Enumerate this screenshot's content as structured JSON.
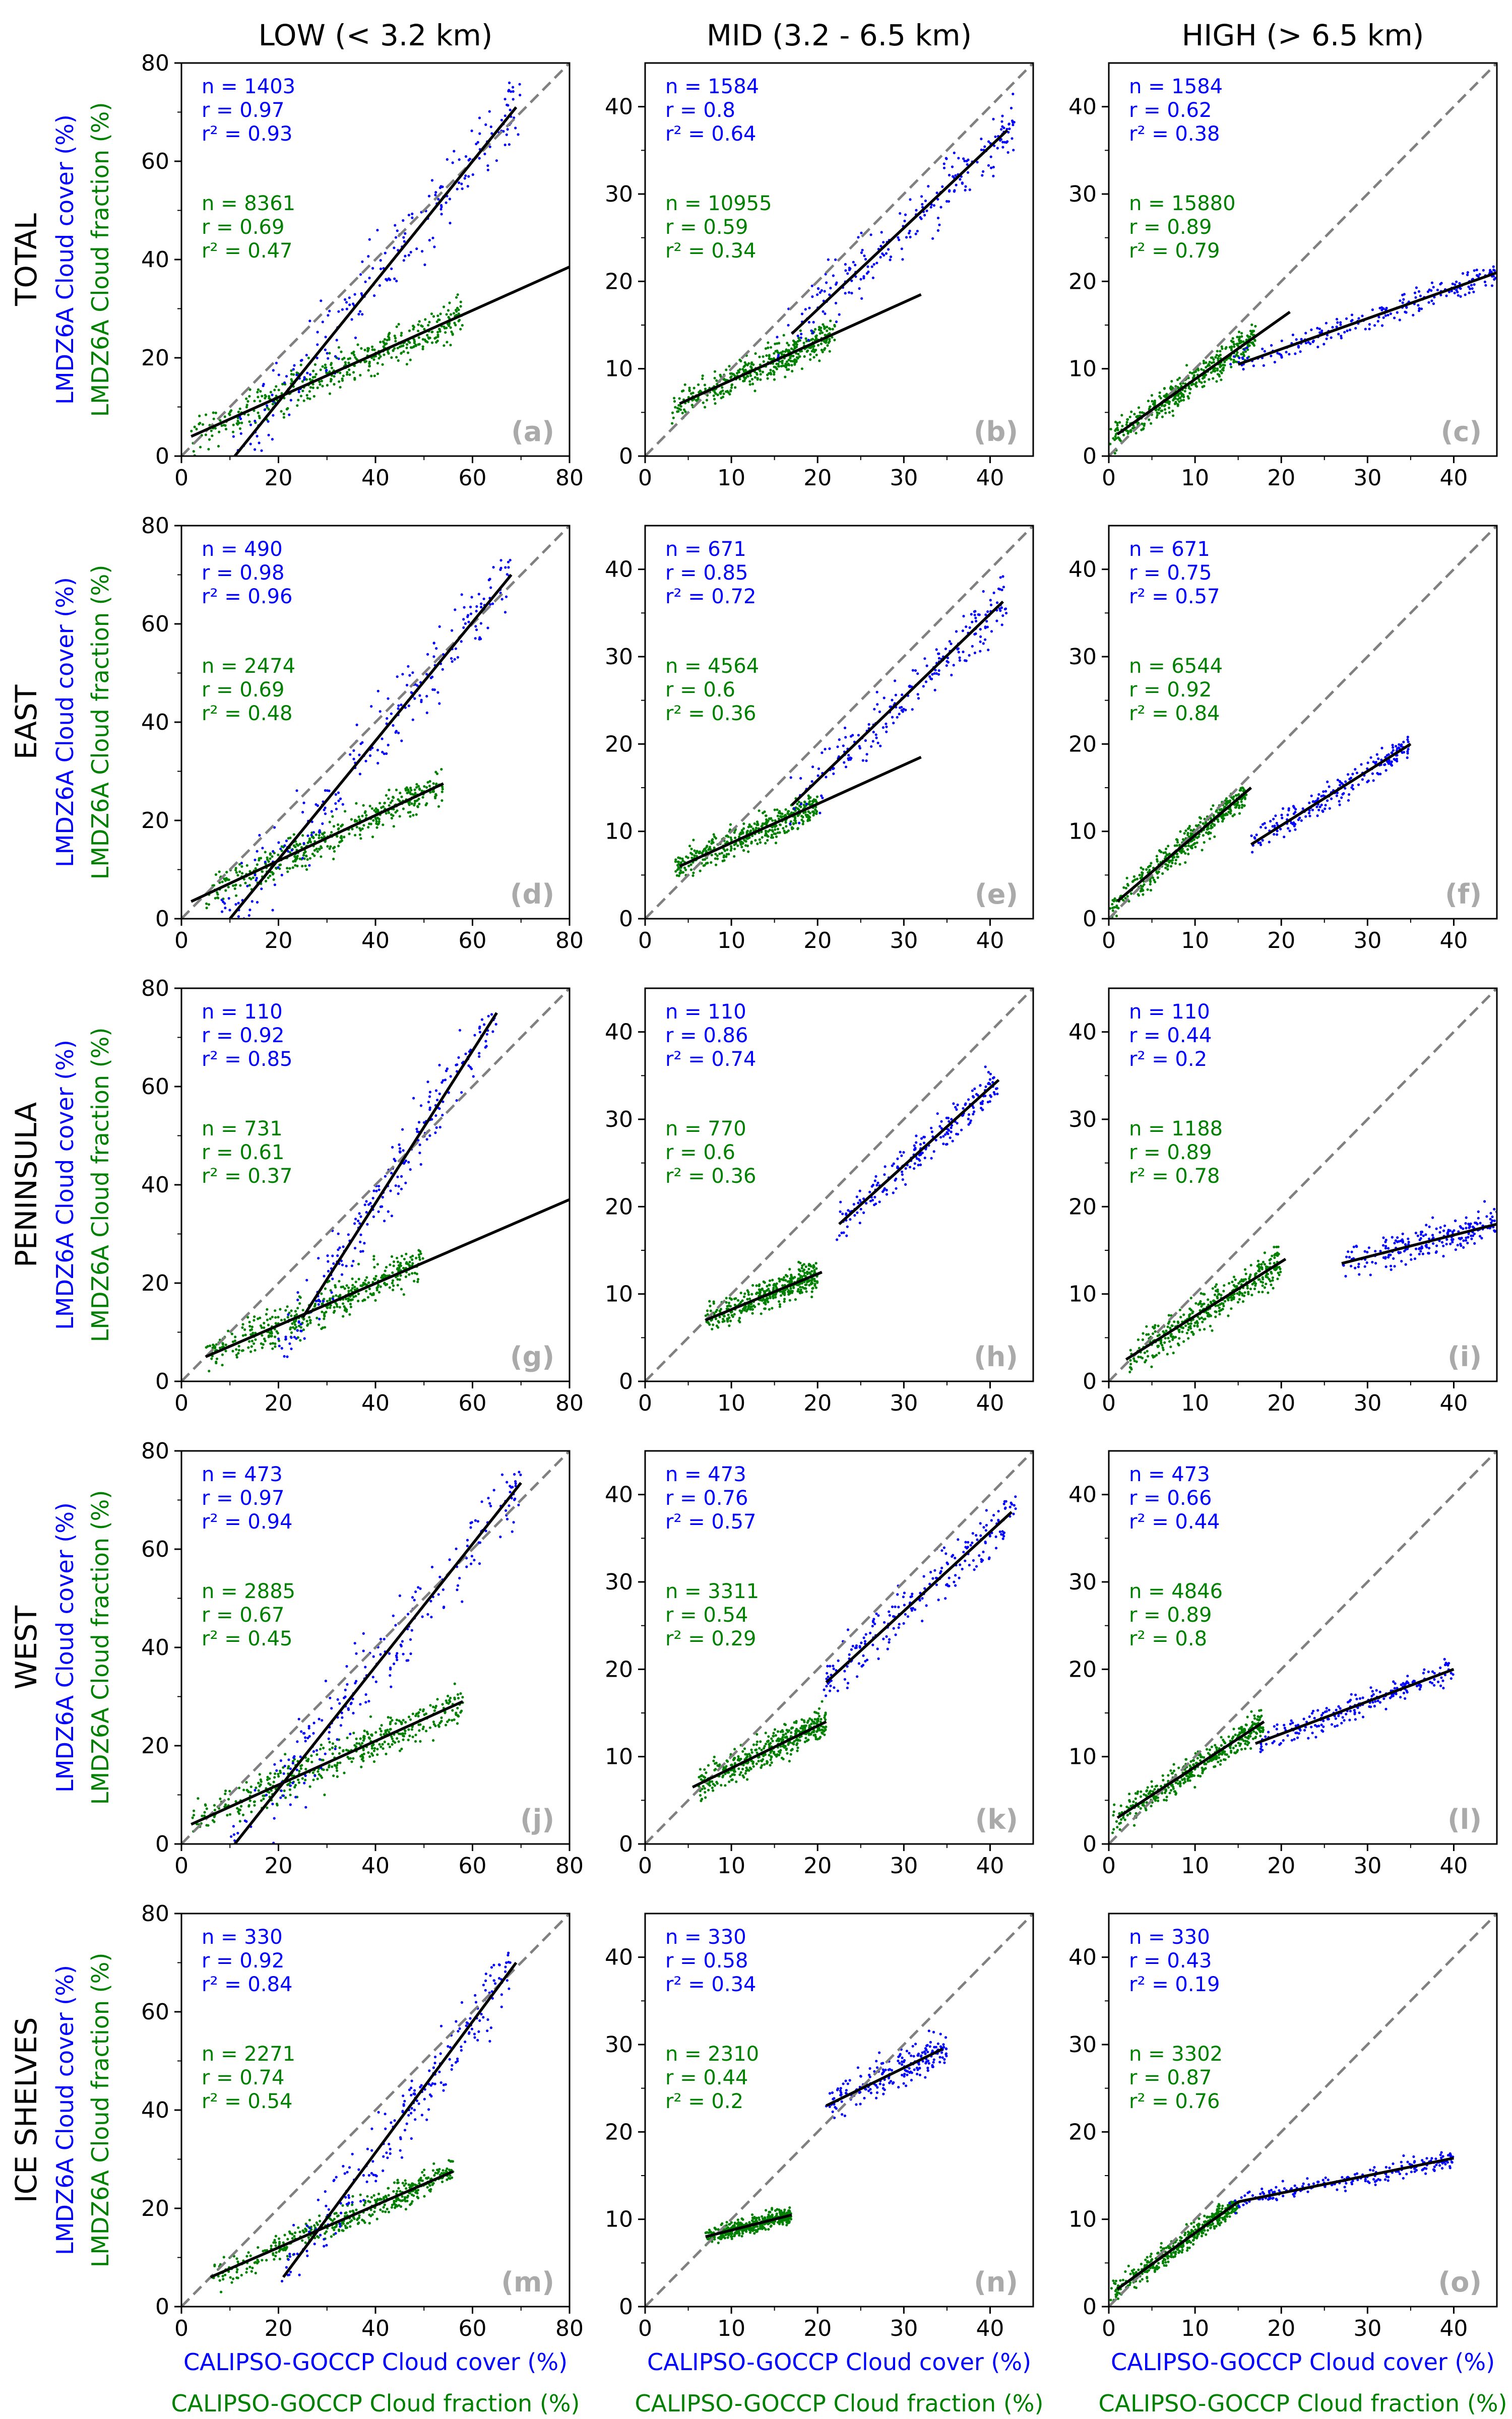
{
  "figure": {
    "columns": [
      {
        "key": "low",
        "label": "LOW (< 3.2 km)"
      },
      {
        "key": "mid",
        "label": "MID (3.2 - 6.5 km)"
      },
      {
        "key": "high",
        "label": "HIGH (> 6.5 km)"
      }
    ],
    "rows": [
      {
        "key": "total",
        "label": "TOTAL"
      },
      {
        "key": "east",
        "label": "EAST"
      },
      {
        "key": "peninsula",
        "label": "PENINSULA"
      },
      {
        "key": "west",
        "label": "WEST"
      },
      {
        "key": "ice_shelves",
        "label": "ICE SHELVES"
      }
    ],
    "ylabel_cover": "LMDZ6A Cloud cover (%)",
    "ylabel_fraction": "LMDZ6A Cloud fraction (%)",
    "xlabel_cover": "CALIPSO-GOCCP Cloud cover (%)",
    "xlabel_fraction": "CALIPSO-GOCCP Cloud fraction (%)",
    "colors": {
      "cover": "#0000ff",
      "fraction": "#008000",
      "panel_letter": "#aaaaaa",
      "identity_line": "#808080",
      "fit_line": "#000000"
    },
    "stat_prefix": {
      "n": "n = ",
      "r": "r = ",
      "r2": "r² = "
    }
  },
  "chart_data": [
    {
      "type": "scatter",
      "panel": "(a)",
      "row": "TOTAL",
      "column": "LOW (< 3.2 km)",
      "xlim": [
        0,
        80
      ],
      "ylim": [
        0,
        80
      ],
      "xticks": [
        0,
        20,
        40,
        60,
        80
      ],
      "yticks": [
        0,
        20,
        40,
        60,
        80
      ],
      "identity_line": true,
      "cover": {
        "n": 1403,
        "r": 0.97,
        "r2": 0.93,
        "fit": [
          [
            11,
            0
          ],
          [
            69,
            71
          ]
        ],
        "cluster": {
          "x": [
            10,
            70
          ],
          "y": [
            0,
            77
          ]
        }
      },
      "fraction": {
        "n": 8361,
        "r": 0.69,
        "r2": 0.47,
        "fit": [
          [
            2,
            4
          ],
          [
            80,
            38.5
          ]
        ],
        "cluster": {
          "x": [
            2,
            58
          ],
          "y": [
            0,
            38
          ]
        }
      }
    },
    {
      "type": "scatter",
      "panel": "(b)",
      "row": "TOTAL",
      "column": "MID (3.2 - 6.5 km)",
      "xlim": [
        0,
        45
      ],
      "ylim": [
        0,
        45
      ],
      "xticks": [
        0,
        10,
        20,
        30,
        40
      ],
      "yticks": [
        0,
        10,
        20,
        30,
        40
      ],
      "identity_line": true,
      "cover": {
        "n": 1584,
        "r": 0.8,
        "r2": 0.64,
        "fit": [
          [
            17,
            14
          ],
          [
            42,
            37.3
          ]
        ],
        "cluster": {
          "x": [
            15,
            43
          ],
          "y": [
            10,
            42
          ]
        }
      },
      "fraction": {
        "n": 10955,
        "r": 0.59,
        "r2": 0.34,
        "fit": [
          [
            4,
            6
          ],
          [
            32,
            18.5
          ]
        ],
        "cluster": {
          "x": [
            3,
            22
          ],
          "y": [
            0,
            18
          ]
        }
      }
    },
    {
      "type": "scatter",
      "panel": "(c)",
      "row": "TOTAL",
      "column": "HIGH (> 6.5 km)",
      "xlim": [
        0,
        45
      ],
      "ylim": [
        0,
        45
      ],
      "xticks": [
        0,
        10,
        20,
        30,
        40
      ],
      "yticks": [
        0,
        10,
        20,
        30,
        40
      ],
      "identity_line": true,
      "cover": {
        "n": 1584,
        "r": 0.62,
        "r2": 0.38,
        "fit": [
          [
            15,
            10.5
          ],
          [
            45,
            21
          ]
        ],
        "cluster": {
          "x": [
            14,
            45
          ],
          "y": [
            8,
            22
          ]
        }
      },
      "fraction": {
        "n": 15880,
        "r": 0.89,
        "r2": 0.79,
        "fit": [
          [
            1,
            2.5
          ],
          [
            21,
            16.5
          ]
        ],
        "cluster": {
          "x": [
            0,
            17
          ],
          "y": [
            0,
            16
          ]
        }
      }
    },
    {
      "type": "scatter",
      "panel": "(d)",
      "row": "EAST",
      "column": "LOW (< 3.2 km)",
      "xlim": [
        0,
        80
      ],
      "ylim": [
        0,
        80
      ],
      "xticks": [
        0,
        20,
        40,
        60,
        80
      ],
      "yticks": [
        0,
        20,
        40,
        60,
        80
      ],
      "identity_line": true,
      "cover": {
        "n": 490,
        "r": 0.98,
        "r2": 0.96,
        "fit": [
          [
            10,
            0
          ],
          [
            68,
            70
          ]
        ],
        "cluster": {
          "x": [
            8,
            68
          ],
          "y": [
            0,
            73
          ]
        }
      },
      "fraction": {
        "n": 2474,
        "r": 0.69,
        "r2": 0.48,
        "fit": [
          [
            2,
            3.5
          ],
          [
            54,
            27.5
          ]
        ],
        "cluster": {
          "x": [
            5,
            54
          ],
          "y": [
            0,
            35
          ]
        }
      }
    },
    {
      "type": "scatter",
      "panel": "(e)",
      "row": "EAST",
      "column": "MID (3.2 - 6.5 km)",
      "xlim": [
        0,
        45
      ],
      "ylim": [
        0,
        45
      ],
      "xticks": [
        0,
        10,
        20,
        30,
        40
      ],
      "yticks": [
        0,
        10,
        20,
        30,
        40
      ],
      "identity_line": true,
      "cover": {
        "n": 671,
        "r": 0.85,
        "r2": 0.72,
        "fit": [
          [
            17,
            13
          ],
          [
            41.5,
            36.3
          ]
        ],
        "cluster": {
          "x": [
            16,
            42
          ],
          "y": [
            10,
            40
          ]
        }
      },
      "fraction": {
        "n": 4564,
        "r": 0.6,
        "r2": 0.36,
        "fit": [
          [
            4,
            6
          ],
          [
            32,
            18.5
          ]
        ],
        "cluster": {
          "x": [
            3,
            20
          ],
          "y": [
            0,
            16
          ]
        }
      }
    },
    {
      "type": "scatter",
      "panel": "(f)",
      "row": "EAST",
      "column": "HIGH (> 6.5 km)",
      "xlim": [
        0,
        45
      ],
      "ylim": [
        0,
        45
      ],
      "xticks": [
        0,
        10,
        20,
        30,
        40
      ],
      "yticks": [
        0,
        10,
        20,
        30,
        40
      ],
      "identity_line": true,
      "cover": {
        "n": 671,
        "r": 0.75,
        "r2": 0.57,
        "fit": [
          [
            16.5,
            8.5
          ],
          [
            35,
            20
          ]
        ],
        "cluster": {
          "x": [
            16,
            35
          ],
          "y": [
            6,
            21
          ]
        }
      },
      "fraction": {
        "n": 6544,
        "r": 0.92,
        "r2": 0.84,
        "fit": [
          [
            1,
            2
          ],
          [
            16.5,
            15
          ]
        ],
        "cluster": {
          "x": [
            0,
            16
          ],
          "y": [
            0,
            15
          ]
        }
      }
    },
    {
      "type": "scatter",
      "panel": "(g)",
      "row": "PENINSULA",
      "column": "LOW (< 3.2 km)",
      "xlim": [
        0,
        80
      ],
      "ylim": [
        0,
        80
      ],
      "xticks": [
        0,
        20,
        40,
        60,
        80
      ],
      "yticks": [
        0,
        20,
        40,
        60,
        80
      ],
      "identity_line": true,
      "cover": {
        "n": 110,
        "r": 0.92,
        "r2": 0.85,
        "fit": [
          [
            25,
            13
          ],
          [
            65,
            75
          ]
        ],
        "cluster": {
          "x": [
            20,
            65
          ],
          "y": [
            5,
            75
          ]
        }
      },
      "fraction": {
        "n": 731,
        "r": 0.61,
        "r2": 0.37,
        "fit": [
          [
            5,
            5
          ],
          [
            80,
            37
          ]
        ],
        "cluster": {
          "x": [
            5,
            50
          ],
          "y": [
            2,
            40
          ]
        }
      }
    },
    {
      "type": "scatter",
      "panel": "(h)",
      "row": "PENINSULA",
      "column": "MID (3.2 - 6.5 km)",
      "xlim": [
        0,
        45
      ],
      "ylim": [
        0,
        45
      ],
      "xticks": [
        0,
        10,
        20,
        30,
        40
      ],
      "yticks": [
        0,
        10,
        20,
        30,
        40
      ],
      "identity_line": true,
      "cover": {
        "n": 110,
        "r": 0.86,
        "r2": 0.74,
        "fit": [
          [
            22.5,
            18
          ],
          [
            41,
            34.5
          ]
        ],
        "cluster": {
          "x": [
            22,
            41
          ],
          "y": [
            16,
            38
          ]
        }
      },
      "fraction": {
        "n": 770,
        "r": 0.6,
        "r2": 0.36,
        "fit": [
          [
            7,
            7
          ],
          [
            20.5,
            12.5
          ]
        ],
        "cluster": {
          "x": [
            7,
            20
          ],
          "y": [
            5,
            20
          ]
        }
      }
    },
    {
      "type": "scatter",
      "panel": "(i)",
      "row": "PENINSULA",
      "column": "HIGH (> 6.5 km)",
      "xlim": [
        0,
        45
      ],
      "ylim": [
        0,
        45
      ],
      "xticks": [
        0,
        10,
        20,
        30,
        40
      ],
      "yticks": [
        0,
        10,
        20,
        30,
        40
      ],
      "identity_line": true,
      "cover": {
        "n": 110,
        "r": 0.44,
        "r2": 0.2,
        "fit": [
          [
            27,
            13.5
          ],
          [
            45,
            18
          ]
        ],
        "cluster": {
          "x": [
            27,
            45
          ],
          "y": [
            9,
            28
          ]
        }
      },
      "fraction": {
        "n": 1188,
        "r": 0.89,
        "r2": 0.78,
        "fit": [
          [
            2,
            2.5
          ],
          [
            20.5,
            14
          ]
        ],
        "cluster": {
          "x": [
            2,
            20
          ],
          "y": [
            1,
            21
          ]
        }
      }
    },
    {
      "type": "scatter",
      "panel": "(j)",
      "row": "WEST",
      "column": "LOW (< 3.2 km)",
      "xlim": [
        0,
        80
      ],
      "ylim": [
        0,
        80
      ],
      "xticks": [
        0,
        20,
        40,
        60,
        80
      ],
      "yticks": [
        0,
        20,
        40,
        60,
        80
      ],
      "identity_line": true,
      "cover": {
        "n": 473,
        "r": 0.97,
        "r2": 0.94,
        "fit": [
          [
            11,
            0
          ],
          [
            70,
            73.5
          ]
        ],
        "cluster": {
          "x": [
            10,
            70
          ],
          "y": [
            0,
            77
          ]
        }
      },
      "fraction": {
        "n": 2885,
        "r": 0.67,
        "r2": 0.45,
        "fit": [
          [
            2,
            4
          ],
          [
            58,
            29
          ]
        ],
        "cluster": {
          "x": [
            2,
            58
          ],
          "y": [
            0,
            38
          ]
        }
      }
    },
    {
      "type": "scatter",
      "panel": "(k)",
      "row": "WEST",
      "column": "MID (3.2 - 6.5 km)",
      "xlim": [
        0,
        45
      ],
      "ylim": [
        0,
        45
      ],
      "xticks": [
        0,
        10,
        20,
        30,
        40
      ],
      "yticks": [
        0,
        10,
        20,
        30,
        40
      ],
      "identity_line": true,
      "cover": {
        "n": 473,
        "r": 0.76,
        "r2": 0.57,
        "fit": [
          [
            21,
            18.5
          ],
          [
            42.5,
            38
          ]
        ],
        "cluster": {
          "x": [
            20,
            43
          ],
          "y": [
            16,
            42
          ]
        }
      },
      "fraction": {
        "n": 3311,
        "r": 0.54,
        "r2": 0.29,
        "fit": [
          [
            5.5,
            6.5
          ],
          [
            21,
            14
          ]
        ],
        "cluster": {
          "x": [
            6,
            21
          ],
          "y": [
            4,
            21
          ]
        }
      }
    },
    {
      "type": "scatter",
      "panel": "(l)",
      "row": "WEST",
      "column": "HIGH (> 6.5 km)",
      "xlim": [
        0,
        45
      ],
      "ylim": [
        0,
        45
      ],
      "xticks": [
        0,
        10,
        20,
        30,
        40
      ],
      "yticks": [
        0,
        10,
        20,
        30,
        40
      ],
      "identity_line": true,
      "cover": {
        "n": 473,
        "r": 0.66,
        "r2": 0.44,
        "fit": [
          [
            17,
            11.5
          ],
          [
            40,
            20
          ]
        ],
        "cluster": {
          "x": [
            17,
            40
          ],
          "y": [
            9,
            23
          ]
        }
      },
      "fraction": {
        "n": 4846,
        "r": 0.89,
        "r2": 0.8,
        "fit": [
          [
            1,
            3
          ],
          [
            18,
            14
          ]
        ],
        "cluster": {
          "x": [
            0,
            18
          ],
          "y": [
            0,
            16
          ]
        }
      }
    },
    {
      "type": "scatter",
      "panel": "(m)",
      "row": "ICE SHELVES",
      "column": "LOW (< 3.2 km)",
      "xlim": [
        0,
        80
      ],
      "ylim": [
        0,
        80
      ],
      "xticks": [
        0,
        20,
        40,
        60,
        80
      ],
      "yticks": [
        0,
        20,
        40,
        60,
        80
      ],
      "identity_line": true,
      "cover": {
        "n": 330,
        "r": 0.92,
        "r2": 0.84,
        "fit": [
          [
            21,
            6
          ],
          [
            69,
            70
          ]
        ],
        "cluster": {
          "x": [
            20,
            68
          ],
          "y": [
            5,
            75
          ]
        }
      },
      "fraction": {
        "n": 2271,
        "r": 0.74,
        "r2": 0.54,
        "fit": [
          [
            6,
            6
          ],
          [
            56,
            27.5
          ]
        ],
        "cluster": {
          "x": [
            6,
            56
          ],
          "y": [
            2,
            30
          ]
        }
      }
    },
    {
      "type": "scatter",
      "panel": "(n)",
      "row": "ICE SHELVES",
      "column": "MID (3.2 - 6.5 km)",
      "xlim": [
        0,
        45
      ],
      "ylim": [
        0,
        45
      ],
      "xticks": [
        0,
        10,
        20,
        30,
        40
      ],
      "yticks": [
        0,
        10,
        20,
        30,
        40
      ],
      "identity_line": true,
      "cover": {
        "n": 330,
        "r": 0.58,
        "r2": 0.34,
        "fit": [
          [
            21,
            23
          ],
          [
            34.5,
            29.5
          ]
        ],
        "cluster": {
          "x": [
            21,
            35
          ],
          "y": [
            16,
            36
          ]
        }
      },
      "fraction": {
        "n": 2310,
        "r": 0.44,
        "r2": 0.2,
        "fit": [
          [
            7,
            8
          ],
          [
            17,
            10.5
          ]
        ],
        "cluster": {
          "x": [
            7,
            17
          ],
          "y": [
            5,
            14
          ]
        }
      }
    },
    {
      "type": "scatter",
      "panel": "(o)",
      "row": "ICE SHELVES",
      "column": "HIGH (> 6.5 km)",
      "xlim": [
        0,
        45
      ],
      "ylim": [
        0,
        45
      ],
      "xticks": [
        0,
        10,
        20,
        30,
        40
      ],
      "yticks": [
        0,
        10,
        20,
        30,
        40
      ],
      "identity_line": true,
      "cover": {
        "n": 330,
        "r": 0.43,
        "r2": 0.19,
        "fit": [
          [
            15,
            12
          ],
          [
            40,
            17
          ]
        ],
        "cluster": {
          "x": [
            14,
            40
          ],
          "y": [
            8,
            18
          ]
        }
      },
      "fraction": {
        "n": 3302,
        "r": 0.87,
        "r2": 0.76,
        "fit": [
          [
            1,
            2
          ],
          [
            15,
            12
          ]
        ],
        "cluster": {
          "x": [
            0,
            15
          ],
          "y": [
            0,
            12
          ]
        }
      }
    }
  ]
}
